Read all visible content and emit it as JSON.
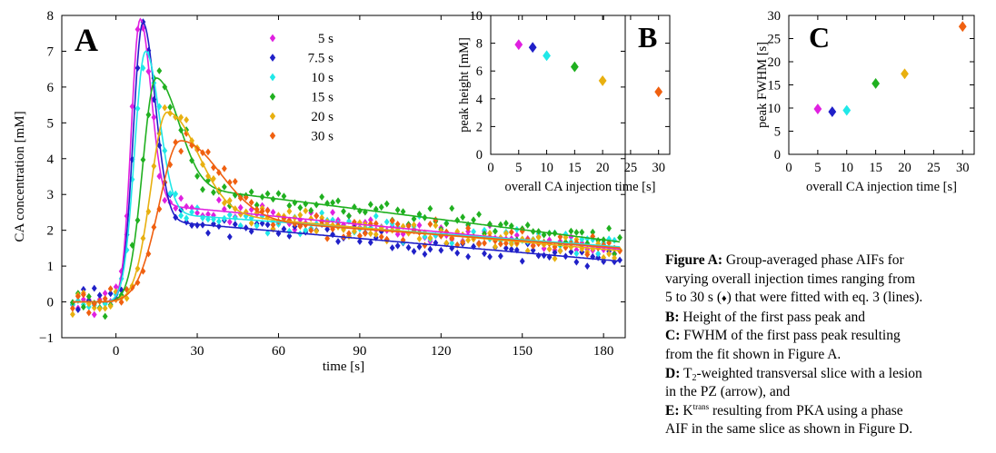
{
  "chart_data": [
    {
      "type": "scatter",
      "panel_letter": "A",
      "xlabel": "time [s]",
      "ylabel": "CA concentration [mM]",
      "xlim": [
        -20,
        188
      ],
      "ylim": [
        -1,
        8
      ],
      "xticks": [
        "0",
        "30",
        "60",
        "90",
        "120",
        "150",
        "180"
      ],
      "yticks": [
        "−1",
        "0",
        "1",
        "2",
        "3",
        "4",
        "5",
        "6",
        "7",
        "8"
      ],
      "marker": "♦",
      "legend_position": "top-center",
      "series": [
        {
          "name": "5 s",
          "color": "#e020e0",
          "peak_time": 9,
          "peak": 7.9,
          "rise": 3.2,
          "fall": 4.0,
          "base": 2.75,
          "slope": 0.0072
        },
        {
          "name": "7.5 s",
          "color": "#2020c8",
          "peak_time": 10,
          "peak": 7.8,
          "rise": 3.5,
          "fall": 4.5,
          "base": 2.3,
          "slope": 0.0066
        },
        {
          "name": "10 s",
          "color": "#20e8e8",
          "peak_time": 11,
          "peak": 7.0,
          "rise": 4.0,
          "fall": 5.0,
          "base": 2.5,
          "slope": 0.0055
        },
        {
          "name": "15 s",
          "color": "#20b020",
          "peak_time": 15,
          "peak": 6.25,
          "rise": 5.0,
          "fall": 8.0,
          "base": 3.3,
          "slope": 0.0095
        },
        {
          "name": "20 s",
          "color": "#e8b010",
          "peak_time": 19,
          "peak": 5.3,
          "rise": 6.0,
          "fall": 11.0,
          "base": 2.55,
          "slope": 0.0067
        },
        {
          "name": "30 s",
          "color": "#f06010",
          "peak_time": 24,
          "peak": 4.5,
          "rise": 8.0,
          "fall": 14.0,
          "base": 2.4,
          "slope": 0.0055
        }
      ]
    },
    {
      "type": "scatter",
      "panel_letter": "B",
      "xlabel": "overall CA injection time [s]",
      "ylabel": "peak height [mM]",
      "xlim": [
        0,
        32
      ],
      "ylim": [
        0,
        10
      ],
      "xticks": [
        "0",
        "5",
        "10",
        "15",
        "20",
        "25",
        "30"
      ],
      "yticks": [
        "0",
        "2",
        "4",
        "6",
        "8",
        "10"
      ],
      "x": [
        5,
        7.5,
        10,
        15,
        20,
        30
      ],
      "y": [
        7.9,
        7.7,
        7.1,
        6.3,
        5.3,
        4.5
      ],
      "colors": [
        "#e020e0",
        "#2020c8",
        "#20e8e8",
        "#20b020",
        "#e8b010",
        "#f06010"
      ]
    },
    {
      "type": "scatter",
      "panel_letter": "C",
      "xlabel": "overall CA injection time [s]",
      "ylabel": "peak FWHM [s]",
      "xlim": [
        0,
        32
      ],
      "ylim": [
        0,
        30
      ],
      "xticks": [
        "0",
        "5",
        "10",
        "15",
        "20",
        "25",
        "30"
      ],
      "yticks": [
        "0",
        "5",
        "10",
        "15",
        "20",
        "25",
        "30"
      ],
      "x": [
        5,
        7.5,
        10,
        15,
        20,
        30
      ],
      "y": [
        9.8,
        9.2,
        9.5,
        15.3,
        17.4,
        27.6
      ],
      "colors": [
        "#e020e0",
        "#2020c8",
        "#20e8e8",
        "#20b020",
        "#e8b010",
        "#f06010"
      ]
    }
  ],
  "caption": {
    "line1_bold": "Figure A:",
    "line1_text": " Group-averaged phase AIFs for",
    "line2": "varying overall injection times ranging from",
    "line3_a": "5 to 30 s (",
    "line3_marker": "♦",
    "line3_b": ") that were fitted with eq. 3 (lines).",
    "line4_bold": "B:",
    "line4_text": " Height of the first pass peak and",
    "line5_bold": "C:",
    "line5_text": " FWHM of the first pass peak resulting",
    "line6": "from the fit shown in Figure A.",
    "line7_bold": "D:",
    "line7_a": " T",
    "line7_sub": "2",
    "line7_b": "-weighted transversal slice with a lesion",
    "line8": "in the PZ (arrow), and",
    "line9_bold": "E:",
    "line9_a": " K",
    "line9_sup": "trans",
    "line9_b": " resulting from PKA using a phase",
    "line10": "AIF in the same slice as shown in Figure D."
  }
}
